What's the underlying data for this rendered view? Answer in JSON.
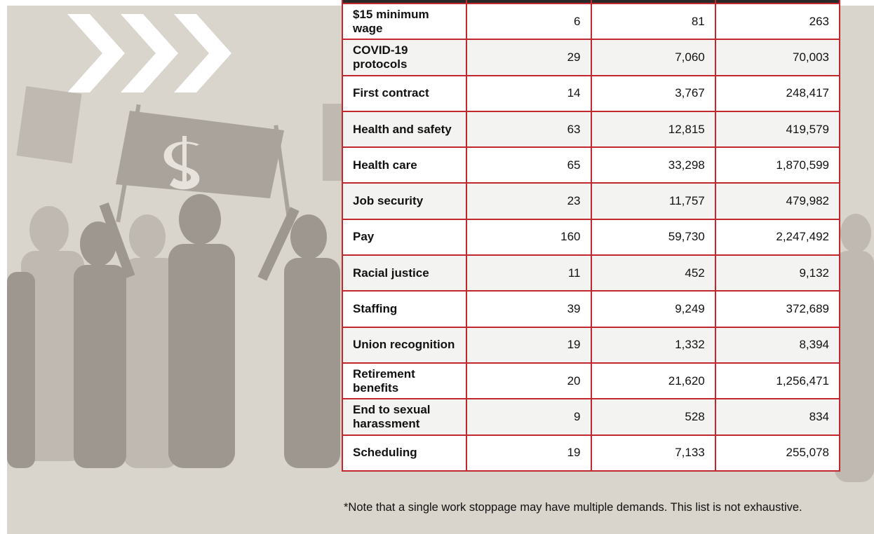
{
  "table": {
    "rows": [
      [
        "$15 minimum wage",
        "6",
        "81",
        "263"
      ],
      [
        "COVID-19 protocols",
        "29",
        "7,060",
        "70,003"
      ],
      [
        "First contract",
        "14",
        "3,767",
        "248,417"
      ],
      [
        "Health and safety",
        "63",
        "12,815",
        "419,579"
      ],
      [
        "Health care",
        "65",
        "33,298",
        "1,870,599"
      ],
      [
        "Job security",
        "23",
        "11,757",
        "479,982"
      ],
      [
        "Pay",
        "160",
        "59,730",
        "2,247,492"
      ],
      [
        "Racial justice",
        "11",
        "452",
        "9,132"
      ],
      [
        "Staffing",
        "39",
        "9,249",
        "372,689"
      ],
      [
        "Union recognition",
        "19",
        "1,332",
        "8,394"
      ],
      [
        "Retirement benefits",
        "20",
        "21,620",
        "1,256,471"
      ],
      [
        "End to sexual harassment",
        "9",
        "528",
        "834"
      ],
      [
        "Scheduling",
        "19",
        "7,133",
        "255,078"
      ]
    ]
  },
  "note": "*Note that a single work stoppage may have multiple demands. This list is not exhaustive."
}
